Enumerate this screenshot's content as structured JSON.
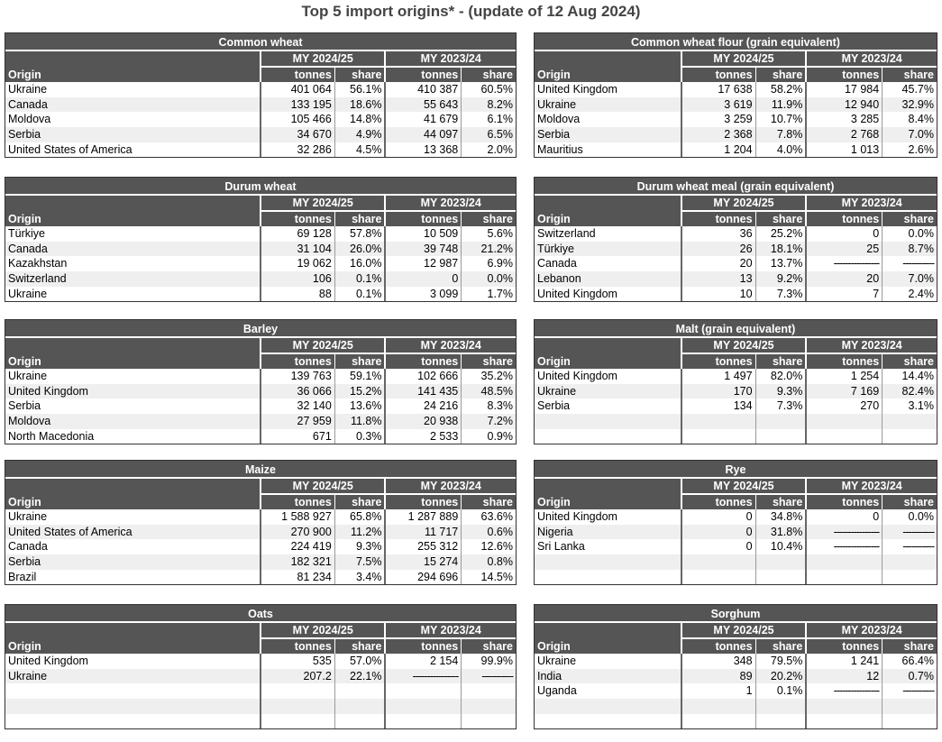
{
  "title": "Top 5 import origins* - (update of 12 Aug 2024)",
  "headers": {
    "origin": "Origin",
    "my1": "MY 2024/25",
    "my2": "MY 2023/24",
    "tonnes": "tonnes",
    "share": "share"
  },
  "panels": [
    {
      "id": "common-wheat",
      "title": "Common wheat",
      "side": "left",
      "top": 36,
      "rows": [
        [
          "Ukraine",
          "401 064",
          "56.1%",
          "410 387",
          "60.5%"
        ],
        [
          "Canada",
          "133 195",
          "18.6%",
          "55 643",
          "8.2%"
        ],
        [
          "Moldova",
          "105 466",
          "14.8%",
          "41 679",
          "6.1%"
        ],
        [
          "Serbia",
          "34 670",
          "4.9%",
          "44 097",
          "6.5%"
        ],
        [
          "United States of America",
          "32 286",
          "4.5%",
          "13 368",
          "2.0%"
        ]
      ]
    },
    {
      "id": "common-wheat-flour",
      "title": "Common wheat flour (grain equivalent)",
      "side": "right",
      "top": 36,
      "rows": [
        [
          "United Kingdom",
          "17 638",
          "58.2%",
          "17 984",
          "45.7%"
        ],
        [
          "Ukraine",
          "3 619",
          "11.9%",
          "12 940",
          "32.9%"
        ],
        [
          "Moldova",
          "3 259",
          "10.7%",
          "3 285",
          "8.4%"
        ],
        [
          "Serbia",
          "2 368",
          "7.8%",
          "2 768",
          "7.0%"
        ],
        [
          "Mauritius",
          "1 204",
          "4.0%",
          "1 013",
          "2.6%"
        ]
      ]
    },
    {
      "id": "durum-wheat",
      "title": "Durum wheat",
      "side": "left",
      "top": 196,
      "rows": [
        [
          "Türkiye",
          "69 128",
          "57.8%",
          "10 509",
          "5.6%"
        ],
        [
          "Canada",
          "31 104",
          "26.0%",
          "39 748",
          "21.2%"
        ],
        [
          "Kazakhstan",
          "19 062",
          "16.0%",
          "12 987",
          "6.9%"
        ],
        [
          "Switzerland",
          "106",
          "0.1%",
          "0",
          "0.0%"
        ],
        [
          "Ukraine",
          "88",
          "0.1%",
          "3 099",
          "1.7%"
        ]
      ]
    },
    {
      "id": "durum-wheat-meal",
      "title": "Durum wheat meal (grain equivalent)",
      "side": "right",
      "top": 196,
      "rows": [
        [
          "Switzerland",
          "36",
          "25.2%",
          "0",
          "0.0%"
        ],
        [
          "Türkiye",
          "26",
          "18.1%",
          "25",
          "8.7%"
        ],
        [
          "Canada",
          "20",
          "13.7%",
          "----------------",
          "-----------"
        ],
        [
          "Lebanon",
          "13",
          "9.2%",
          "20",
          "7.0%"
        ],
        [
          "United Kingdom",
          "10",
          "7.3%",
          "7",
          "2.4%"
        ]
      ]
    },
    {
      "id": "barley",
      "title": "Barley",
      "side": "left",
      "top": 354,
      "rows": [
        [
          "Ukraine",
          "139 763",
          "59.1%",
          "102 666",
          "35.2%"
        ],
        [
          "United Kingdom",
          "36 066",
          "15.2%",
          "141 435",
          "48.5%"
        ],
        [
          "Serbia",
          "32 140",
          "13.6%",
          "24 216",
          "8.3%"
        ],
        [
          "Moldova",
          "27 959",
          "11.8%",
          "20 938",
          "7.2%"
        ],
        [
          "North Macedonia",
          "671",
          "0.3%",
          "2 533",
          "0.9%"
        ]
      ]
    },
    {
      "id": "malt",
      "title": "Malt (grain equivalent)",
      "side": "right",
      "top": 354,
      "rows": [
        [
          "United Kingdom",
          "1 497",
          "82.0%",
          "1 254",
          "14.4%"
        ],
        [
          "Ukraine",
          "170",
          "9.3%",
          "7 169",
          "82.4%"
        ],
        [
          "Serbia",
          "134",
          "7.3%",
          "270",
          "3.1%"
        ],
        [
          "",
          "",
          "",
          "",
          ""
        ],
        [
          "",
          "",
          "",
          "",
          ""
        ]
      ]
    },
    {
      "id": "maize",
      "title": "Maize",
      "side": "left",
      "top": 510,
      "rows": [
        [
          "Ukraine",
          "1 588 927",
          "65.8%",
          "1 287 889",
          "63.6%"
        ],
        [
          "United States of America",
          "270 900",
          "11.2%",
          "11 717",
          "0.6%"
        ],
        [
          "Canada",
          "224 419",
          "9.3%",
          "255 312",
          "12.6%"
        ],
        [
          "Serbia",
          "182 321",
          "7.5%",
          "15 274",
          "0.8%"
        ],
        [
          "Brazil",
          "81 234",
          "3.4%",
          "294 696",
          "14.5%"
        ]
      ]
    },
    {
      "id": "rye",
      "title": "Rye",
      "side": "right",
      "top": 510,
      "rows": [
        [
          "United Kingdom",
          "0",
          "34.8%",
          "0",
          "0.0%"
        ],
        [
          "Nigeria",
          "0",
          "31.8%",
          "----------------",
          "-----------"
        ],
        [
          "Sri Lanka",
          "0",
          "10.4%",
          "----------------",
          "-----------"
        ],
        [
          "",
          "",
          "",
          "",
          ""
        ],
        [
          "",
          "",
          "",
          "",
          ""
        ]
      ]
    },
    {
      "id": "oats",
      "title": "Oats",
      "side": "left",
      "top": 670,
      "rows": [
        [
          "United Kingdom",
          "535",
          "57.0%",
          "2 154",
          "99.9%"
        ],
        [
          "Ukraine",
          "207.2",
          "22.1%",
          "----------------",
          "-----------"
        ],
        [
          "",
          "",
          "",
          "",
          ""
        ],
        [
          "",
          "",
          "",
          "",
          ""
        ],
        [
          "",
          "",
          "",
          "",
          ""
        ]
      ]
    },
    {
      "id": "sorghum",
      "title": "Sorghum",
      "side": "right",
      "top": 670,
      "rows": [
        [
          "Ukraine",
          "348",
          "79.5%",
          "1 241",
          "66.4%"
        ],
        [
          "India",
          "89",
          "20.2%",
          "12",
          "0.7%"
        ],
        [
          "Uganda",
          "1",
          "0.1%",
          "----------------",
          "-----------"
        ],
        [
          "",
          "",
          "",
          "",
          ""
        ],
        [
          "",
          "",
          "",
          "",
          ""
        ]
      ]
    }
  ]
}
